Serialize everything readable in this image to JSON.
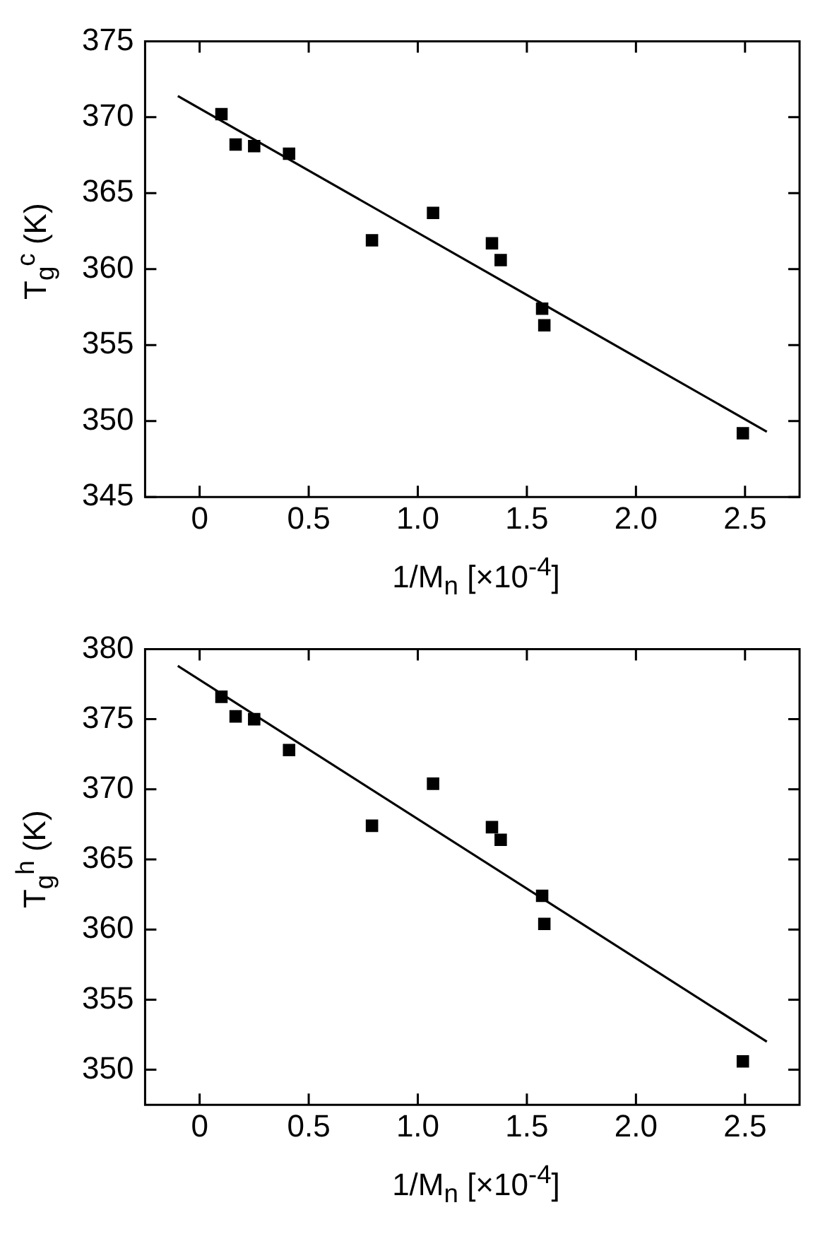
{
  "chart_data": [
    {
      "type": "scatter",
      "xlabel": "1/M$_{n}$ [×10$^{-4}$]",
      "ylabel": "T$_{g}$$^{c}$ (K)",
      "xlim": [
        -0.25,
        2.75
      ],
      "xticks": [
        {
          "value": 0,
          "label": "0"
        },
        {
          "value": 0.5,
          "label": "0.5"
        },
        {
          "value": 1,
          "label": "1.0"
        },
        {
          "value": 1.5,
          "label": "1.5"
        },
        {
          "value": 2,
          "label": "2.0"
        },
        {
          "value": 2.5,
          "label": "2.5"
        }
      ],
      "ylim": [
        345,
        375
      ],
      "yticks": [
        345,
        350,
        355,
        360,
        365,
        370,
        375
      ],
      "grid": false,
      "legend": false,
      "series": [
        {
          "marker": "square",
          "color": "#000000",
          "x": [
            0.1,
            0.165,
            0.25,
            0.41,
            0.79,
            1.07,
            1.34,
            1.38,
            1.57,
            1.58,
            2.49
          ],
          "values": [
            370.2,
            368.2,
            368.1,
            367.6,
            361.9,
            363.7,
            361.7,
            360.6,
            357.4,
            356.3,
            349.2
          ]
        },
        {
          "type": "line",
          "marker": "none",
          "color": "#000000",
          "x": [
            -0.1,
            2.6
          ],
          "values": [
            371.4,
            349.3
          ]
        }
      ]
    },
    {
      "type": "scatter",
      "xlabel": "1/M$_{n}$ [×10$^{-4}$]",
      "ylabel": "T$_{g}$$^{h}$ (K)",
      "xlim": [
        -0.25,
        2.75
      ],
      "xticks": [
        {
          "value": 0,
          "label": "0"
        },
        {
          "value": 0.5,
          "label": "0.5"
        },
        {
          "value": 1,
          "label": "1.0"
        },
        {
          "value": 1.5,
          "label": "1.5"
        },
        {
          "value": 2,
          "label": "2.0"
        },
        {
          "value": 2.5,
          "label": "2.5"
        }
      ],
      "ylim": [
        347.5,
        380
      ],
      "yticks": [
        350,
        355,
        360,
        365,
        370,
        375,
        380
      ],
      "grid": false,
      "legend": false,
      "series": [
        {
          "marker": "square",
          "color": "#000000",
          "x": [
            0.1,
            0.165,
            0.25,
            0.41,
            0.79,
            1.07,
            1.34,
            1.38,
            1.57,
            1.58,
            2.49
          ],
          "values": [
            376.6,
            375.2,
            375.0,
            372.8,
            367.4,
            370.4,
            367.3,
            366.4,
            362.4,
            360.4,
            350.6
          ]
        },
        {
          "type": "line",
          "marker": "none",
          "color": "#000000",
          "x": [
            -0.1,
            2.6
          ],
          "values": [
            378.8,
            352.0
          ]
        }
      ]
    }
  ]
}
